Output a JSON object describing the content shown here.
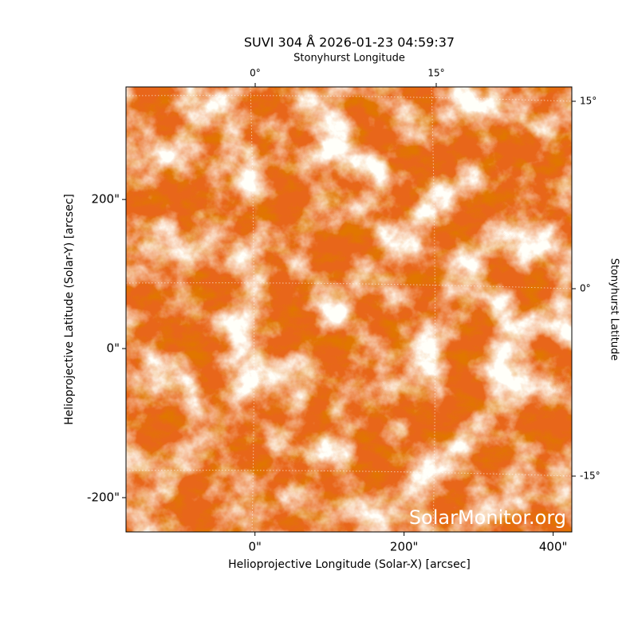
{
  "chart_data": {
    "type": "image",
    "title": "SUVI 304 Å 2026-01-23 04:59:37",
    "x_label": "Helioprojective Longitude (Solar-X) [arcsec]",
    "y_label": "Helioprojective Latitude (Solar-Y) [arcsec]",
    "top_label": "Stonyhurst Longitude",
    "right_label": "Stonyhurst Latitude",
    "watermark": "SolarMonitor.org",
    "xlim": [
      -173,
      425
    ],
    "ylim": [
      -246,
      351
    ],
    "xticks": [
      {
        "value": 0,
        "label": "0\""
      },
      {
        "value": 200,
        "label": "200\""
      },
      {
        "value": 400,
        "label": "400\""
      }
    ],
    "yticks": [
      {
        "value": -200,
        "label": "-200\""
      },
      {
        "value": 0,
        "label": "0\""
      },
      {
        "value": 200,
        "label": "200\""
      }
    ],
    "lon_ticks": [
      {
        "value": 0,
        "label": "0°"
      },
      {
        "value": 15,
        "label": "15°"
      }
    ],
    "lat_ticks": [
      {
        "value": -15,
        "label": "-15°"
      },
      {
        "value": 0,
        "label": "0°"
      },
      {
        "value": 15,
        "label": "15°"
      }
    ],
    "grid": true
  }
}
